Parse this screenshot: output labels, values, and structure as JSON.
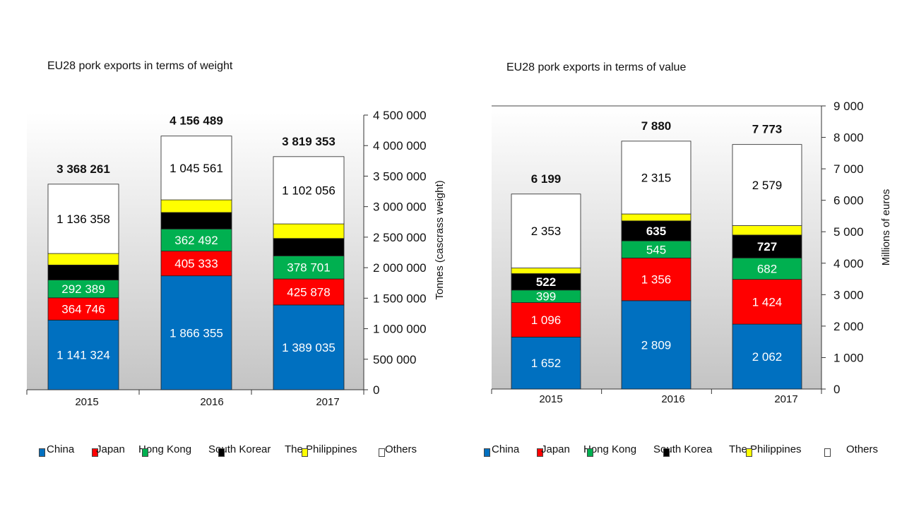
{
  "colors": {
    "China": "#0070c0",
    "Japan": "#ff0000",
    "Hong Kong": "#00b050",
    "South Korea": "#000000",
    "The Philippines": "#ffff00",
    "Others": "#ffffff"
  },
  "chart_data": [
    {
      "type": "bar",
      "stacked": true,
      "title": "EU28 pork exports in terms of weight",
      "ylabel": "Tonnes (cascrass weight)",
      "ylim": [
        0,
        4500000
      ],
      "yticks": [
        "0",
        "500 000",
        "1 000 000",
        "1 500 000",
        "2 000 000",
        "2 500 000",
        "3 000 000",
        "3 500 000",
        "4 000 000",
        "4 500 000"
      ],
      "categories": [
        "2015",
        "2016",
        "2017"
      ],
      "legend": [
        "China",
        "Japan",
        "Hong Kong",
        "South Korear",
        "The Philippines",
        "Others"
      ],
      "legend_position": "bottom",
      "grid": false,
      "series": [
        {
          "name": "China",
          "values": [
            1141324,
            1866355,
            1389035
          ],
          "labels": [
            "1 141 324",
            "1 866 355",
            "1 389 035"
          ]
        },
        {
          "name": "Japan",
          "values": [
            364746,
            405333,
            425878
          ],
          "labels": [
            "364 746",
            "405 333",
            "425 878"
          ]
        },
        {
          "name": "Hong Kong",
          "values": [
            292389,
            362492,
            378701
          ],
          "labels": [
            "292 389",
            "362 492",
            "378 701"
          ]
        },
        {
          "name": "South Korear",
          "values": [
            245000,
            270000,
            285000
          ],
          "labels": [
            "",
            "",
            ""
          ]
        },
        {
          "name": "The Philippines",
          "values": [
            188444,
            206748,
            238683
          ],
          "labels": [
            "",
            "",
            ""
          ]
        },
        {
          "name": "Others",
          "values": [
            1136358,
            1045561,
            1102056
          ],
          "labels": [
            "1 136 358",
            "1 045 561",
            "1 102 056"
          ]
        }
      ],
      "totals": [
        "3 368 261",
        "4 156 489",
        "3 819 353"
      ]
    },
    {
      "type": "bar",
      "stacked": true,
      "title": "EU28 pork exports in terms of value",
      "ylabel": "Millions of euros",
      "ylim": [
        0,
        9000
      ],
      "yticks": [
        "0",
        "1 000",
        "2 000",
        "3 000",
        "4 000",
        "5 000",
        "6 000",
        "7 000",
        "8 000",
        "9 000"
      ],
      "categories": [
        "2015",
        "2016",
        "2017"
      ],
      "legend": [
        "China",
        "Japan",
        "Hong Kong",
        "South Korea",
        "The Philippines",
        "Others"
      ],
      "legend_position": "bottom",
      "grid": false,
      "series": [
        {
          "name": "China",
          "values": [
            1652,
            2809,
            2062
          ],
          "labels": [
            "1 652",
            "2 809",
            "2 062"
          ]
        },
        {
          "name": "Japan",
          "values": [
            1096,
            1356,
            1424
          ],
          "labels": [
            "1 096",
            "1 356",
            "1 424"
          ]
        },
        {
          "name": "Hong Kong",
          "values": [
            399,
            545,
            682
          ],
          "labels": [
            "399",
            "545",
            "682"
          ]
        },
        {
          "name": "South Korea",
          "values": [
            522,
            635,
            727
          ],
          "labels": [
            "522",
            "635",
            "727"
          ]
        },
        {
          "name": "The Philippines",
          "values": [
            177,
            220,
            299
          ],
          "labels": [
            "",
            "",
            ""
          ]
        },
        {
          "name": "Others",
          "values": [
            2353,
            2315,
            2579
          ],
          "labels": [
            "2 353",
            "2 315",
            "2 579"
          ]
        }
      ],
      "totals": [
        "6 199",
        "7 880",
        "7 773"
      ]
    }
  ]
}
